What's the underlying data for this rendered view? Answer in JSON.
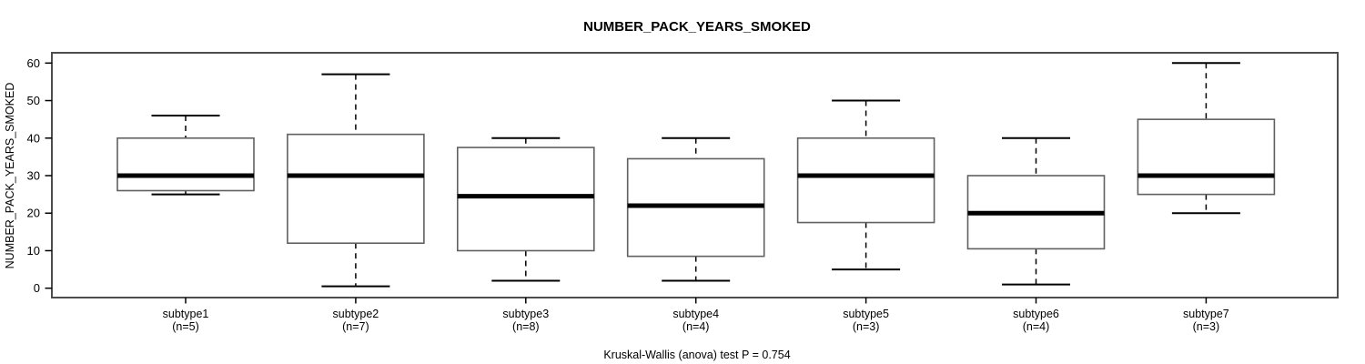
{
  "chart_data": {
    "type": "boxplot",
    "title": "NUMBER_PACK_YEARS_SMOKED",
    "ylabel": "NUMBER_PACK_YEARS_SMOKED",
    "xlabel": "",
    "footnote": "Kruskal-Wallis (anova) test P = 0.754",
    "ylim": [
      0,
      60
    ],
    "yticks": [
      0,
      10,
      20,
      30,
      40,
      50,
      60
    ],
    "grid": false,
    "legend": "none",
    "categories": [
      "subtype1",
      "subtype2",
      "subtype3",
      "subtype4",
      "subtype5",
      "subtype6",
      "subtype7"
    ],
    "groups": [
      {
        "label": "subtype1",
        "n_label": "(n=5)",
        "n": 5,
        "stats": {
          "low": 25,
          "q1": 26,
          "median": 30,
          "q3": 40,
          "high": 46
        }
      },
      {
        "label": "subtype2",
        "n_label": "(n=7)",
        "n": 7,
        "stats": {
          "low": 0.5,
          "q1": 12,
          "median": 30,
          "q3": 41,
          "high": 57
        }
      },
      {
        "label": "subtype3",
        "n_label": "(n=8)",
        "n": 8,
        "stats": {
          "low": 2,
          "q1": 10,
          "median": 24.5,
          "q3": 37.5,
          "high": 40
        }
      },
      {
        "label": "subtype4",
        "n_label": "(n=4)",
        "n": 4,
        "stats": {
          "low": 2,
          "q1": 8.5,
          "median": 22,
          "q3": 34.5,
          "high": 40
        }
      },
      {
        "label": "subtype5",
        "n_label": "(n=3)",
        "n": 3,
        "stats": {
          "low": 5,
          "q1": 17.5,
          "median": 30,
          "q3": 40,
          "high": 50
        }
      },
      {
        "label": "subtype6",
        "n_label": "(n=4)",
        "n": 4,
        "stats": {
          "low": 1,
          "q1": 10.5,
          "median": 20,
          "q3": 30,
          "high": 40
        }
      },
      {
        "label": "subtype7",
        "n_label": "(n=3)",
        "n": 3,
        "stats": {
          "low": 20,
          "q1": 25,
          "median": 30,
          "q3": 45,
          "high": 60
        }
      }
    ],
    "colors": {
      "foreground": "#000000",
      "background": "#ffffff",
      "box_border": "#606060",
      "frame": "#4d4d4d"
    }
  }
}
